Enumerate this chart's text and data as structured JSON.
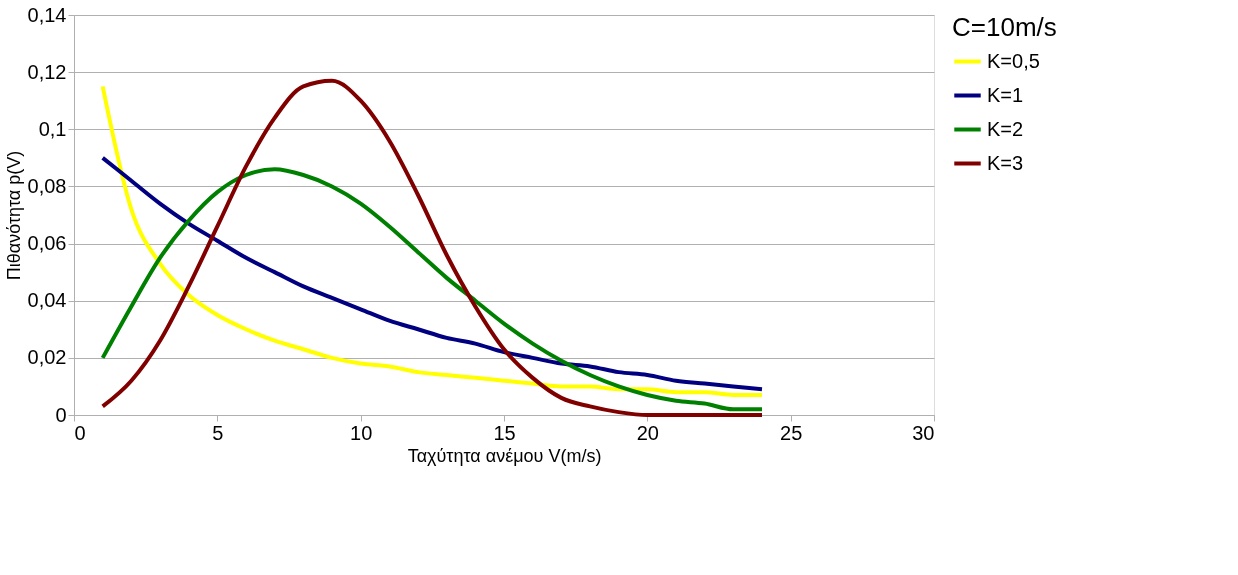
{
  "chart_data": {
    "type": "line",
    "xlabel": "Ταχύτητα ανέμου V(m/s)",
    "ylabel": "Πιθανότητα p(V)",
    "legend_title": "C=10m/s",
    "legend": "right",
    "grid": "y",
    "marker": "none",
    "line_style": "solid",
    "x": [
      1,
      2,
      3,
      4,
      5,
      6,
      7,
      8,
      9,
      10,
      11,
      12,
      13,
      14,
      15,
      16,
      17,
      18,
      19,
      20,
      21,
      22,
      23,
      24
    ],
    "xlim": [
      0,
      30
    ],
    "xticks": [
      0,
      5,
      10,
      15,
      20,
      25,
      30
    ],
    "ylim": [
      0,
      0.14
    ],
    "yticks": [
      0,
      {
        "value": 0.02,
        "label": "0,02"
      },
      {
        "value": 0.04,
        "label": "0,04"
      },
      {
        "value": 0.06,
        "label": "0,06"
      },
      {
        "value": 0.08,
        "label": "0,08"
      },
      {
        "value": 0.1,
        "label": "0,1"
      },
      {
        "value": 0.12,
        "label": "0,12"
      },
      {
        "value": 0.14,
        "label": "0,14"
      }
    ],
    "series": [
      {
        "name": "K=0,5",
        "color": "#ffff00",
        "values": [
          0.115,
          0.072,
          0.053,
          0.042,
          0.035,
          0.03,
          0.026,
          0.023,
          0.02,
          0.018,
          0.017,
          0.015,
          0.014,
          0.013,
          0.012,
          0.011,
          0.01,
          0.01,
          0.009,
          0.009,
          0.008,
          0.008,
          0.007,
          0.007
        ]
      },
      {
        "name": "K=1",
        "color": "#000080",
        "values": [
          0.09,
          0.082,
          0.074,
          0.067,
          0.061,
          0.055,
          0.05,
          0.045,
          0.041,
          0.037,
          0.033,
          0.03,
          0.027,
          0.025,
          0.022,
          0.02,
          0.018,
          0.017,
          0.015,
          0.014,
          0.012,
          0.011,
          0.01,
          0.009
        ]
      },
      {
        "name": "K=2",
        "color": "#008000",
        "values": [
          0.02,
          0.038,
          0.055,
          0.068,
          0.078,
          0.084,
          0.086,
          0.084,
          0.08,
          0.074,
          0.066,
          0.057,
          0.048,
          0.04,
          0.032,
          0.025,
          0.019,
          0.014,
          0.01,
          0.007,
          0.005,
          0.004,
          0.002,
          0.002
        ]
      },
      {
        "name": "K=3",
        "color": "#800000",
        "values": [
          0.003,
          0.012,
          0.026,
          0.045,
          0.066,
          0.087,
          0.104,
          0.115,
          0.117,
          0.11,
          0.096,
          0.077,
          0.056,
          0.038,
          0.023,
          0.013,
          0.006,
          0.003,
          0.001,
          0.0,
          0.0,
          0.0,
          0.0,
          0.0
        ]
      }
    ]
  }
}
